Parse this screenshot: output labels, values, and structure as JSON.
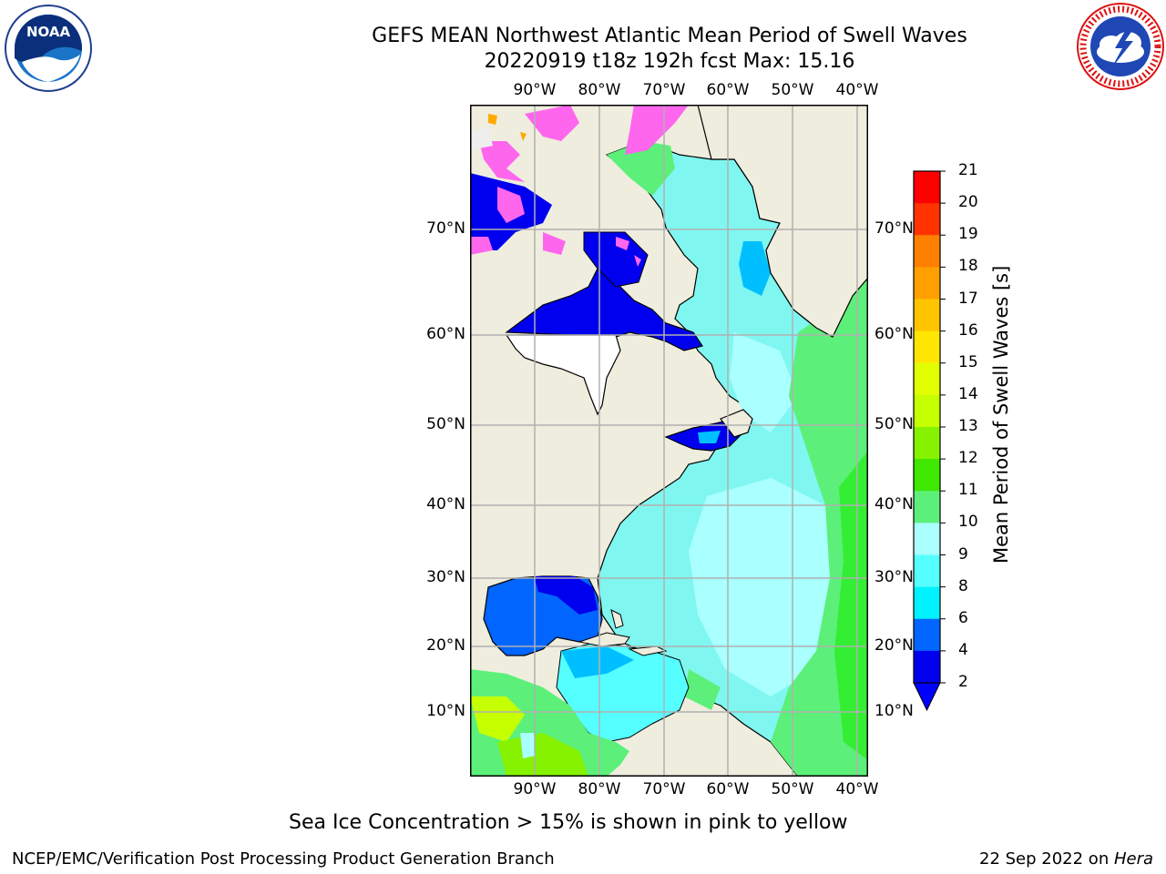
{
  "header": {
    "title_line1": "GEFS MEAN Northwest Atlantic Mean Period of Swell Waves",
    "title_line2": "20220919 t18z 192h fcst   Max: 15.16"
  },
  "logos": {
    "left": {
      "name": "noaa-logo",
      "text": "NOAA"
    },
    "right": {
      "name": "nws-logo",
      "text": "NATIONAL WEATHER SERVICE"
    }
  },
  "map": {
    "lon_ticks": [
      "90°W",
      "80°W",
      "70°W",
      "60°W",
      "50°W",
      "40°W"
    ],
    "lat_ticks": [
      "70°N",
      "60°N",
      "50°N",
      "40°N",
      "30°N",
      "20°N",
      "10°N"
    ],
    "land_color": "#efedde",
    "grid_color": "#b0b0b0"
  },
  "colorbar": {
    "title": "Mean Period of Swell Waves [s]",
    "levels": [
      "21",
      "20",
      "19",
      "18",
      "17",
      "16",
      "15",
      "14",
      "13",
      "12",
      "11",
      "10",
      "9",
      "8",
      "6",
      "4",
      "2"
    ],
    "colors": [
      "#ff0000",
      "#ff3300",
      "#ff5a00",
      "#ff7f00",
      "#ffa000",
      "#ffc400",
      "#ffe600",
      "#f7ff00",
      "#e2ff00",
      "#c6ff00",
      "#86f200",
      "#3ee800",
      "#33ee33",
      "#5cf07a",
      "#aaffff",
      "#55ffff",
      "#00f2ff",
      "#00bfff",
      "#0066ff",
      "#0000ee"
    ],
    "under_color": "#0000ff"
  },
  "note": "Sea Ice Concentration > 15% is shown in pink to yellow",
  "footer": {
    "left": "NCEP/EMC/Verification Post Processing Product Generation Branch",
    "right_date": "22 Sep 2022 on ",
    "right_host": "Hera"
  }
}
